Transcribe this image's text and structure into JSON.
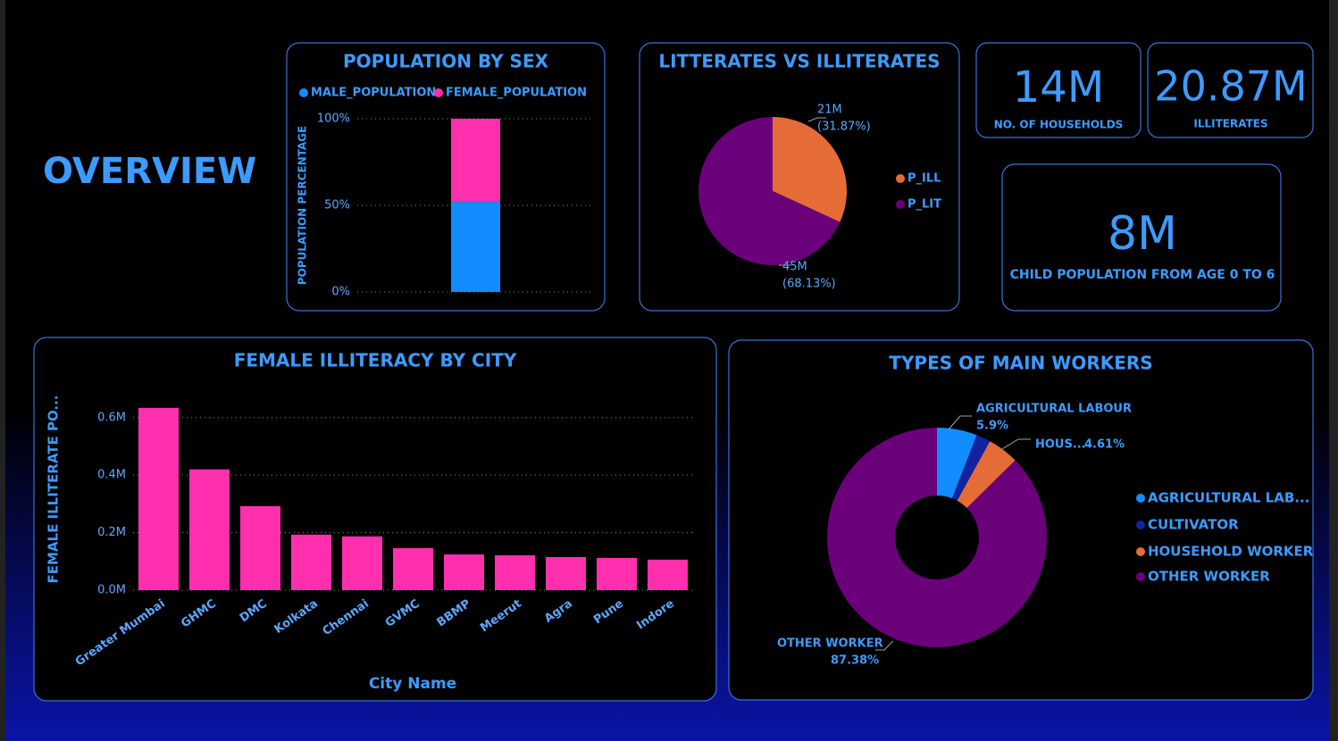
{
  "title": "OVERVIEW",
  "cards": [
    {
      "value": "14M",
      "label": "NO. OF HOUSEHOLDS"
    },
    {
      "value": "20.87M",
      "label": "ILLITERATES"
    },
    {
      "value": "8M",
      "label": "CHILD POPULATION FROM AGE 0 TO 6"
    }
  ],
  "chart_data": [
    {
      "type": "bar",
      "stacked": true,
      "title": "POPULATION BY SEX",
      "ylabel": "POPULATION PERCENTAGE",
      "categories": [
        null
      ],
      "series": [
        {
          "name": "MALE_POPULATION",
          "color": "#118dff",
          "values": [
            52
          ]
        },
        {
          "name": "FEMALE_POPULATION",
          "color": "#ff2fae",
          "values": [
            48
          ]
        }
      ],
      "ylim": [
        0,
        100
      ],
      "yticks": [
        {
          "value": 0,
          "label": "0%"
        },
        {
          "value": 50,
          "label": "50%"
        },
        {
          "value": 100,
          "label": "100%"
        }
      ],
      "grid": true,
      "legend": "top"
    },
    {
      "type": "pie",
      "title": "LITTERATES VS ILLITERATES",
      "categories": [
        "P_ILL",
        "P_LIT"
      ],
      "values": [
        31.87,
        68.13
      ],
      "value_labels": [
        "(31.87%)",
        "(68.13%)"
      ],
      "counts": [
        21000000,
        45000000
      ],
      "count_labels": [
        "21M",
        "45M"
      ],
      "colors": [
        "#e66c37",
        "#6b007b"
      ],
      "legend": "right"
    },
    {
      "type": "bar",
      "title": "FEMALE ILLITERACY BY CITY",
      "xlabel": "City Name",
      "ylabel": "FEMALE ILLITERATE PO...",
      "categories": [
        "Greater Mumbai",
        "GHMC",
        "DMC",
        "Kolkata",
        "Chennai",
        "GVMC",
        "BBMP",
        "Meerut",
        "Agra",
        "Pune",
        "Indore"
      ],
      "values": [
        634000,
        420000,
        292000,
        193000,
        187000,
        146000,
        124000,
        121000,
        115000,
        112000,
        106000
      ],
      "color": "#ff2fae",
      "ylim": [
        0,
        680000
      ],
      "yticks": [
        {
          "value": 0,
          "label": "0.0M"
        },
        {
          "value": 200000,
          "label": "0.2M"
        },
        {
          "value": 400000,
          "label": "0.4M"
        },
        {
          "value": 600000,
          "label": "0.6M"
        }
      ],
      "grid": true
    },
    {
      "type": "donut",
      "title": "TYPES OF MAIN WORKERS",
      "categories": [
        "AGRICULTURAL LAB...",
        "CULTIVATOR",
        "HOUSEHOLD WORKER",
        "OTHER WORKER"
      ],
      "values": [
        5.9,
        2.11,
        4.61,
        87.38
      ],
      "slice_labels": [
        "AGRICULTURAL LABOUR",
        null,
        "HOUS...",
        "OTHER WORKER"
      ],
      "value_labels": [
        "5.9%",
        null,
        "4.61%",
        "87.38%"
      ],
      "colors": [
        "#118dff",
        "#12239e",
        "#e66c37",
        "#6b007b"
      ],
      "legend": "right"
    }
  ]
}
